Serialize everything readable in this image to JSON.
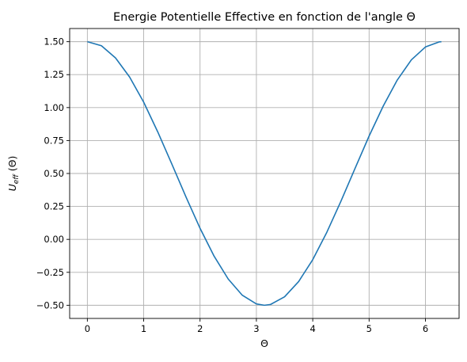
{
  "chart_data": {
    "type": "line",
    "title": "Energie Potentielle Effective en fonction de l'angle Θ",
    "xlabel": "Θ",
    "ylabel_main": "U",
    "ylabel_sub": "eff",
    "ylabel_suffix": " (Θ)",
    "xlim": [
      -0.314,
      6.597
    ],
    "ylim": [
      -0.6,
      1.6
    ],
    "xticks": [
      0,
      1,
      2,
      3,
      4,
      5,
      6
    ],
    "xtick_labels": [
      "0",
      "1",
      "2",
      "3",
      "4",
      "5",
      "6"
    ],
    "yticks": [
      -0.5,
      -0.25,
      0,
      0.25,
      0.5,
      0.75,
      1,
      1.25,
      1.5
    ],
    "ytick_labels": [
      "−0.50",
      "−0.25",
      "0.00",
      "0.25",
      "0.50",
      "0.75",
      "1.00",
      "1.25",
      "1.50"
    ],
    "grid": true,
    "series": [
      {
        "color": "#1f77b4",
        "x": [
          0,
          0.25,
          0.5,
          0.75,
          1,
          1.25,
          1.5,
          1.75,
          2,
          2.25,
          2.5,
          2.75,
          3,
          3.1416,
          3.25,
          3.5,
          3.75,
          4,
          4.25,
          4.5,
          4.75,
          5,
          5.25,
          5.5,
          5.75,
          6,
          6.25,
          6.2832
        ],
        "y": [
          1.5,
          1.469,
          1.377,
          1.232,
          1.041,
          0.815,
          0.571,
          0.322,
          0.084,
          -0.128,
          -0.301,
          -0.424,
          -0.49,
          -0.5,
          -0.494,
          -0.436,
          -0.32,
          -0.154,
          0.054,
          0.289,
          0.538,
          0.784,
          1.011,
          1.209,
          1.362,
          1.46,
          1.499,
          1.5
        ]
      }
    ]
  }
}
